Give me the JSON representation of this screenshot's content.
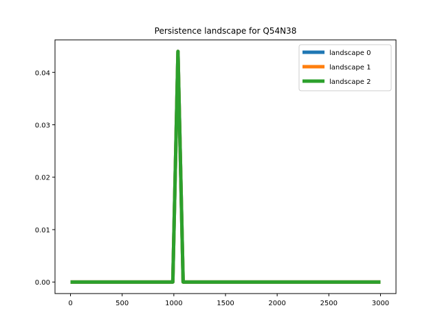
{
  "chart_data": {
    "type": "line",
    "title": "Persistence landscape for Q54N38",
    "xlim": [
      -150,
      3150
    ],
    "ylim": [
      -0.0022,
      0.0462
    ],
    "x_ticks": [
      0,
      500,
      1000,
      1500,
      2000,
      2500,
      3000
    ],
    "x_tick_labels": [
      "0",
      "500",
      "1000",
      "1500",
      "2000",
      "2500",
      "3000"
    ],
    "y_ticks": [
      0.0,
      0.01,
      0.02,
      0.03,
      0.04
    ],
    "y_tick_labels": [
      "0.00",
      "0.01",
      "0.02",
      "0.03",
      "0.04"
    ],
    "legend_position": "top-right",
    "series": [
      {
        "name": "landscape 0",
        "color": "#1f77b4",
        "x": [
          0,
          990,
          1040,
          1090,
          3000
        ],
        "y": [
          0.0,
          0.0,
          0.044,
          0.0,
          0.0
        ]
      },
      {
        "name": "landscape 1",
        "color": "#ff7f0e",
        "x": [
          0,
          990,
          1040,
          1090,
          3000
        ],
        "y": [
          0.0,
          0.0,
          0.044,
          0.0,
          0.0
        ]
      },
      {
        "name": "landscape 2",
        "color": "#2ca02c",
        "x": [
          0,
          990,
          1040,
          1090,
          3000
        ],
        "y": [
          0.0,
          0.0,
          0.044,
          0.0,
          0.0
        ]
      }
    ]
  }
}
